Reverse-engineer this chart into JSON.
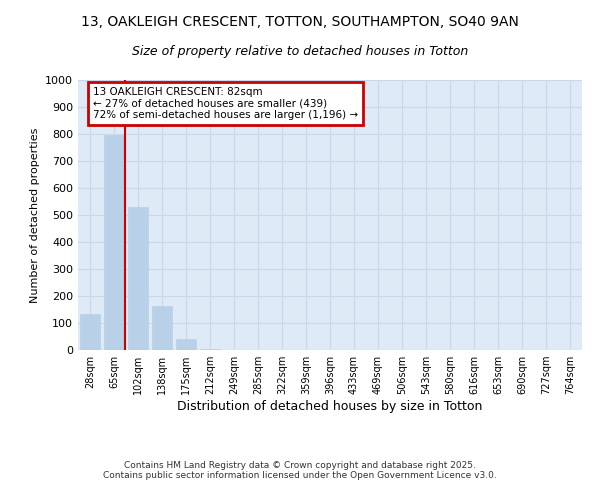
{
  "title_line1": "13, OAKLEIGH CRESCENT, TOTTON, SOUTHAMPTON, SO40 9AN",
  "title_line2": "Size of property relative to detached houses in Totton",
  "xlabel": "Distribution of detached houses by size in Totton",
  "ylabel": "Number of detached properties",
  "categories": [
    "28sqm",
    "65sqm",
    "102sqm",
    "138sqm",
    "175sqm",
    "212sqm",
    "249sqm",
    "285sqm",
    "322sqm",
    "359sqm",
    "396sqm",
    "433sqm",
    "469sqm",
    "506sqm",
    "543sqm",
    "580sqm",
    "616sqm",
    "653sqm",
    "690sqm",
    "727sqm",
    "764sqm"
  ],
  "values": [
    135,
    795,
    530,
    162,
    40,
    5,
    0,
    0,
    0,
    0,
    0,
    0,
    0,
    0,
    0,
    0,
    0,
    0,
    0,
    0,
    0
  ],
  "bar_color": "#b8d0e8",
  "bar_edge_color": "#b8d0e8",
  "grid_color": "#c8d8e8",
  "background_color": "#deeaf6",
  "property_label": "13 OAKLEIGH CRESCENT: 82sqm",
  "annotation_line2": "← 27% of detached houses are smaller (439)",
  "annotation_line3": "72% of semi-detached houses are larger (1,196) →",
  "annotation_box_color": "#ffffff",
  "annotation_box_edge": "#cc0000",
  "footer_line1": "Contains HM Land Registry data © Crown copyright and database right 2025.",
  "footer_line2": "Contains public sector information licensed under the Open Government Licence v3.0.",
  "ylim": [
    0,
    1000
  ],
  "yticks": [
    0,
    100,
    200,
    300,
    400,
    500,
    600,
    700,
    800,
    900,
    1000
  ]
}
